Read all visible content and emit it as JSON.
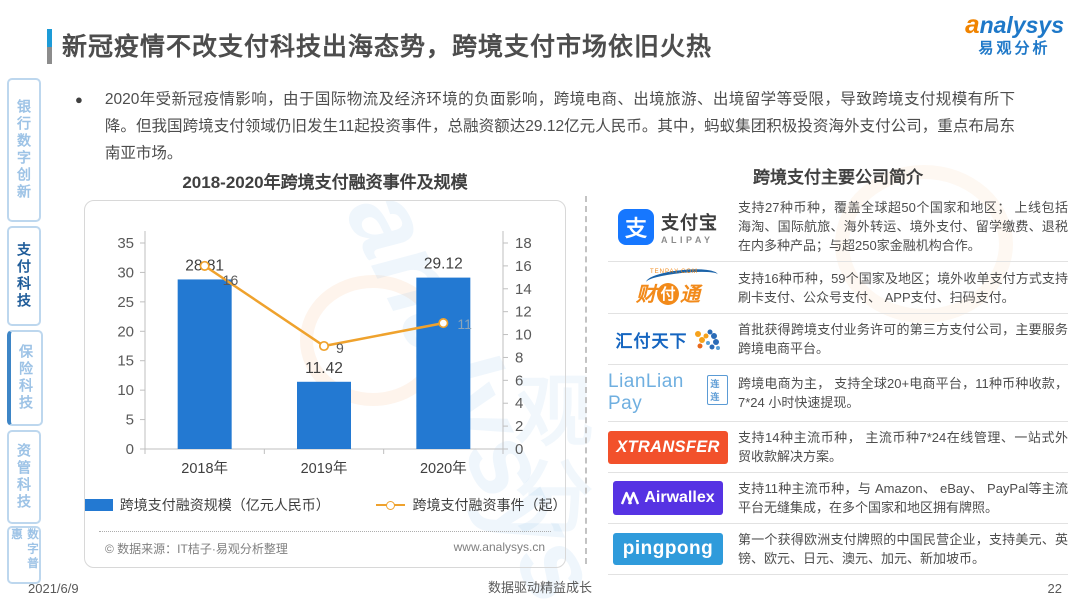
{
  "header": {
    "title": "新冠疫情不改支付科技出海态势，跨境支付市场依旧火热",
    "brand_a": "a",
    "brand_rest": "nalysys",
    "brand_cn": "易观分析"
  },
  "sidebar": {
    "items": [
      {
        "label": "银行数字创新",
        "active": false,
        "accent": false
      },
      {
        "label": "支付科技",
        "active": true,
        "accent": false
      },
      {
        "label": "保险科技",
        "active": false,
        "accent": true
      },
      {
        "label": "资管科技",
        "active": false,
        "accent": false
      },
      {
        "label": "数字普惠",
        "active": false,
        "accent": false
      }
    ]
  },
  "intro": {
    "bullet": "●",
    "text": "2020年受新冠疫情影响，由于国际物流及经济环境的负面影响，跨境电商、出境旅游、出境留学等受限，导致跨境支付规模有所下降。但我国跨境支付领域仍旧发生11起投资事件，总融资额达29.12亿元人民币。其中，蚂蚁集团积极投资海外支付公司，重点布局东南亚市场。"
  },
  "chart_data": {
    "type": "bar",
    "title": "2018-2020年跨境支付融资事件及规模",
    "categories": [
      "2018年",
      "2019年",
      "2020年"
    ],
    "series": [
      {
        "name": "跨境支付融资规模（亿元人民币）",
        "type": "bar",
        "axis": "left",
        "values": [
          28.81,
          11.42,
          29.12
        ],
        "labels": [
          "28.81",
          "11.42",
          "29.12"
        ],
        "color": "#2379D2"
      },
      {
        "name": "跨境支付融资事件（起）",
        "type": "line",
        "axis": "right",
        "values": [
          16,
          9,
          11
        ],
        "labels": [
          "16",
          "9",
          "11"
        ],
        "color": "#EFA22D"
      }
    ],
    "left_axis": {
      "min": 0,
      "max": 35,
      "step": 5
    },
    "right_axis": {
      "min": 0,
      "max": 18,
      "step": 2
    },
    "grid": false,
    "legend_position": "bottom",
    "source_left": "© 数据来源：IT桔子·易观分析整理",
    "source_right": "www.analysys.cn"
  },
  "companies": {
    "title": "跨境支付主要公司简介",
    "logos": {
      "alipay": {
        "mark": "支",
        "text": "支付宝",
        "sub": "ALIPAY"
      },
      "tenpay": {
        "t1": "财",
        "t2": "付",
        "t3": "通",
        "sub": "TENPAY.COM"
      },
      "huifu": {
        "text": "汇付天下"
      },
      "lianlian": {
        "text": "LianLian Pay",
        "sub": "连连"
      },
      "xtransfer": {
        "text": "XTRANSFER",
        "bg": "#F2512B"
      },
      "airwallex": {
        "text": "Airwallex",
        "bg": "#5633E3"
      },
      "pingpong": {
        "text": "pingpong",
        "bg": "#2F9BDB"
      }
    },
    "rows": [
      {
        "logo": "alipay",
        "desc": "支持27种币种，覆盖全球超50个国家和地区； 上线包括海淘、国际航旅、海外转运、境外支付、留学缴费、退税在内多种产品；与超250家金融机构合作。"
      },
      {
        "logo": "tenpay",
        "desc": "支持16种币种，59个国家及地区；境外收单支付方式支持刷卡支付、公众号支付、 APP支付、扫码支付。"
      },
      {
        "logo": "huifu",
        "desc": "首批获得跨境支付业务许可的第三方支付公司，主要服务跨境电商平台。"
      },
      {
        "logo": "lianlian",
        "desc": "跨境电商为主， 支持全球20+电商平台，11种币种收款，7*24 小时快速提现。"
      },
      {
        "logo": "xtransfer",
        "desc": "支持14种主流币种， 主流币种7*24在线管理、一站式外贸收款解决方案。"
      },
      {
        "logo": "airwallex",
        "desc": "支持11种主流币种，与 Amazon、 eBay、 PayPal等主流平台无缝集成，在多个国家和地区拥有牌照。"
      },
      {
        "logo": "pingpong",
        "desc": "第一个获得欧洲支付牌照的中国民营企业，支持美元、英镑、欧元、日元、澳元、加元、新加坡币。"
      }
    ]
  },
  "footer": {
    "date": "2021/6/9",
    "center": "数据驱动精益成长",
    "page": "22"
  },
  "watermark": {
    "en": "analysys",
    "cn": "观分"
  }
}
